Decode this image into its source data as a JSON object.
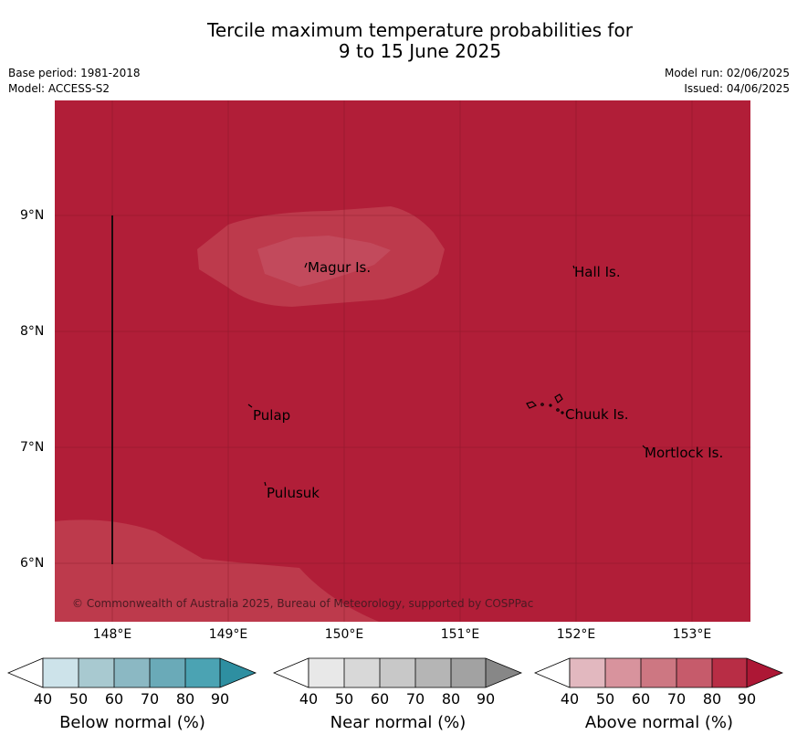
{
  "title_line1": "Tercile maximum temperature probabilities for",
  "title_line2": "9 to 15 June 2025",
  "base_period": "Base period: 1981-2018",
  "model": "Model: ACCESS-S2",
  "model_run": "Model run: 02/06/2025",
  "issued": "Issued: 04/06/2025",
  "latitudes": [
    "9°N",
    "8°N",
    "7°N",
    "6°N"
  ],
  "longitudes": [
    "148°E",
    "149°E",
    "150°E",
    "151°E",
    "152°E",
    "153°E"
  ],
  "places": {
    "magur": "Magur Is.",
    "hall": "Hall Is.",
    "pulap": "Pulap",
    "chuuk": "Chuuk Is.",
    "mortlock": "Mortlock Is.",
    "pulusuk": "Pulusuk"
  },
  "copyright": "© Commonwealth of Australia 2025, Bureau of Meteorology, supported by COSPPac",
  "colorbars": {
    "below": {
      "title": "Below normal (%)",
      "ticks": [
        "40",
        "50",
        "60",
        "70",
        "80",
        "90"
      ],
      "colors": [
        "#ffffff",
        "#cde3ea",
        "#a8c9d0",
        "#8bb8c3",
        "#6aaab8",
        "#4ba3b3",
        "#2e8fa1"
      ]
    },
    "near": {
      "title": "Near normal (%)",
      "ticks": [
        "40",
        "50",
        "60",
        "70",
        "80",
        "90"
      ],
      "colors": [
        "#ffffff",
        "#e8e8e8",
        "#d8d8d8",
        "#c8c8c8",
        "#b5b5b5",
        "#a2a2a2",
        "#878787"
      ]
    },
    "above": {
      "title": "Above normal (%)",
      "ticks": [
        "40",
        "50",
        "60",
        "70",
        "80",
        "90"
      ],
      "colors": [
        "#ffffff",
        "#e2b8bf",
        "#d8939d",
        "#cd7782",
        "#c65b6b",
        "#b82d45",
        "#ad1735"
      ]
    }
  },
  "map_colors": {
    "above_80_90": "#b11e38",
    "above_70_80": "#bd3a4c",
    "above_60_70": "#c24a5c"
  }
}
